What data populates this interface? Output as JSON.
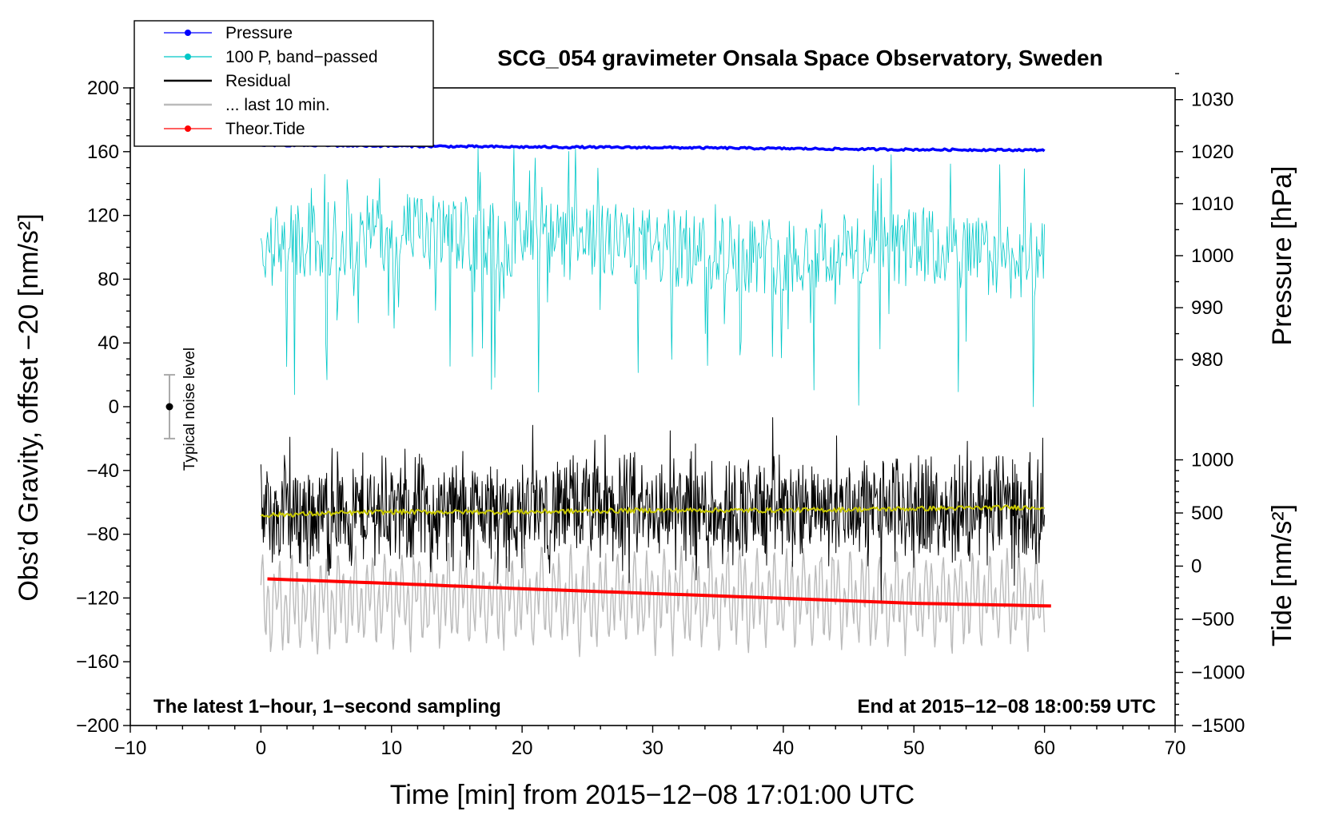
{
  "chart_data": {
    "type": "line",
    "title": "SCG_054 gravimeter Onsala Space Observatory, Sweden",
    "xlabel": "Time [min] from 2015−12−08 17:01:00 UTC",
    "ylabel_left": "Obs’d Gravity, offset −20 [nm/s²]",
    "ylabel_right_top": "Pressure [hPa]",
    "ylabel_right_bottom": "Tide [nm/s²]",
    "xlim": [
      -10,
      70
    ],
    "ylim": [
      -200,
      200
    ],
    "x_ticks": [
      -10,
      0,
      10,
      20,
      30,
      40,
      50,
      60,
      70
    ],
    "x_tick_labels": [
      "−10",
      "0",
      "10",
      "20",
      "30",
      "40",
      "50",
      "60",
      "70"
    ],
    "y_ticks": [
      200,
      160,
      120,
      80,
      40,
      0,
      -40,
      -80,
      -120,
      -160,
      -200
    ],
    "y_tick_labels": [
      "200",
      "160",
      "120",
      "80",
      "40",
      "0",
      "−40",
      "−80",
      "−120",
      "−160",
      "−200"
    ],
    "pressure_axis": {
      "ticks": [
        1030,
        1020,
        1010,
        1000,
        990,
        980
      ],
      "tick_labels": [
        "1030",
        "1020",
        "1010",
        "1000",
        "990",
        "980"
      ],
      "map": {
        "value_a": 1020,
        "left_a": 160,
        "value_b": 980,
        "left_b": 29.5
      }
    },
    "tide_axis": {
      "ticks": [
        1000,
        500,
        0,
        -500,
        -1000,
        -1500
      ],
      "tick_labels": [
        "1000",
        "500",
        "0",
        "−500",
        "−1000",
        "−1500"
      ],
      "map": {
        "value_a": 0,
        "left_a": -100,
        "value_b": -1500,
        "left_b": -200
      }
    },
    "annotation_left": "The latest 1−hour, 1−second sampling",
    "annotation_right": "End at 2015−12−08 18:00:59 UTC",
    "noise_label": "Typical noise level",
    "noise_bar": {
      "x": -7,
      "center": 0,
      "low": -20,
      "high": 20
    },
    "legend": [
      {
        "label": "Pressure",
        "color": "#0000ff",
        "marker": true
      },
      {
        "label": "100 P, band−passed",
        "color": "#00c8c8",
        "marker": true
      },
      {
        "label": "Residual",
        "color": "#000000",
        "marker": false
      },
      {
        "label": "... last 10 min.",
        "color": "#bbbbbb",
        "marker": false
      },
      {
        "label": "Theor.Tide",
        "color": "#ff0000",
        "marker": true
      }
    ],
    "series": [
      {
        "name": "Pressure",
        "axis": "pressure_hPa",
        "color": "#0000ff",
        "x": [
          0,
          10,
          20,
          30,
          40,
          50,
          60
        ],
        "values": [
          1021.3,
          1021.1,
          1020.9,
          1020.8,
          1020.6,
          1020.4,
          1020.3
        ]
      },
      {
        "name": "100 P, band−passed",
        "axis": "gravity_nm_s2",
        "color": "#00c8c8",
        "x": [
          0,
          10,
          20,
          30,
          40,
          50,
          60
        ],
        "values": [
          100,
          110,
          105,
          100,
          95,
          100,
          90
        ],
        "range": [
          0,
          168
        ]
      },
      {
        "name": "Residual",
        "axis": "gravity_nm_s2",
        "color": "#000000",
        "x": [
          0,
          10,
          20,
          30,
          40,
          50,
          60
        ],
        "values": [
          -68,
          -66,
          -66,
          -65,
          -65,
          -64,
          -64
        ],
        "range": [
          -125,
          -5
        ]
      },
      {
        "name": "... last 10 min.",
        "axis": "gravity_nm_s2",
        "color": "#bbbbbb",
        "x": [
          0,
          10,
          20,
          30,
          40,
          50,
          60
        ],
        "values": [
          -125,
          -120,
          -120,
          -120,
          -120,
          -120,
          -120
        ],
        "range": [
          -175,
          -80
        ]
      },
      {
        "name": "Smoothed residual",
        "axis": "gravity_nm_s2",
        "color": "#c8c800",
        "x": [
          0,
          10,
          20,
          30,
          40,
          50,
          60
        ],
        "values": [
          -68,
          -66,
          -66,
          -65,
          -65,
          -64,
          -63
        ]
      },
      {
        "name": "Theor.Tide",
        "axis": "tide_nm_s2",
        "color": "#ff0000",
        "x": [
          0.5,
          10,
          20,
          30,
          40,
          50,
          60.5
        ],
        "values": [
          -120,
          -163,
          -213,
          -258,
          -303,
          -350,
          -375
        ]
      }
    ]
  }
}
